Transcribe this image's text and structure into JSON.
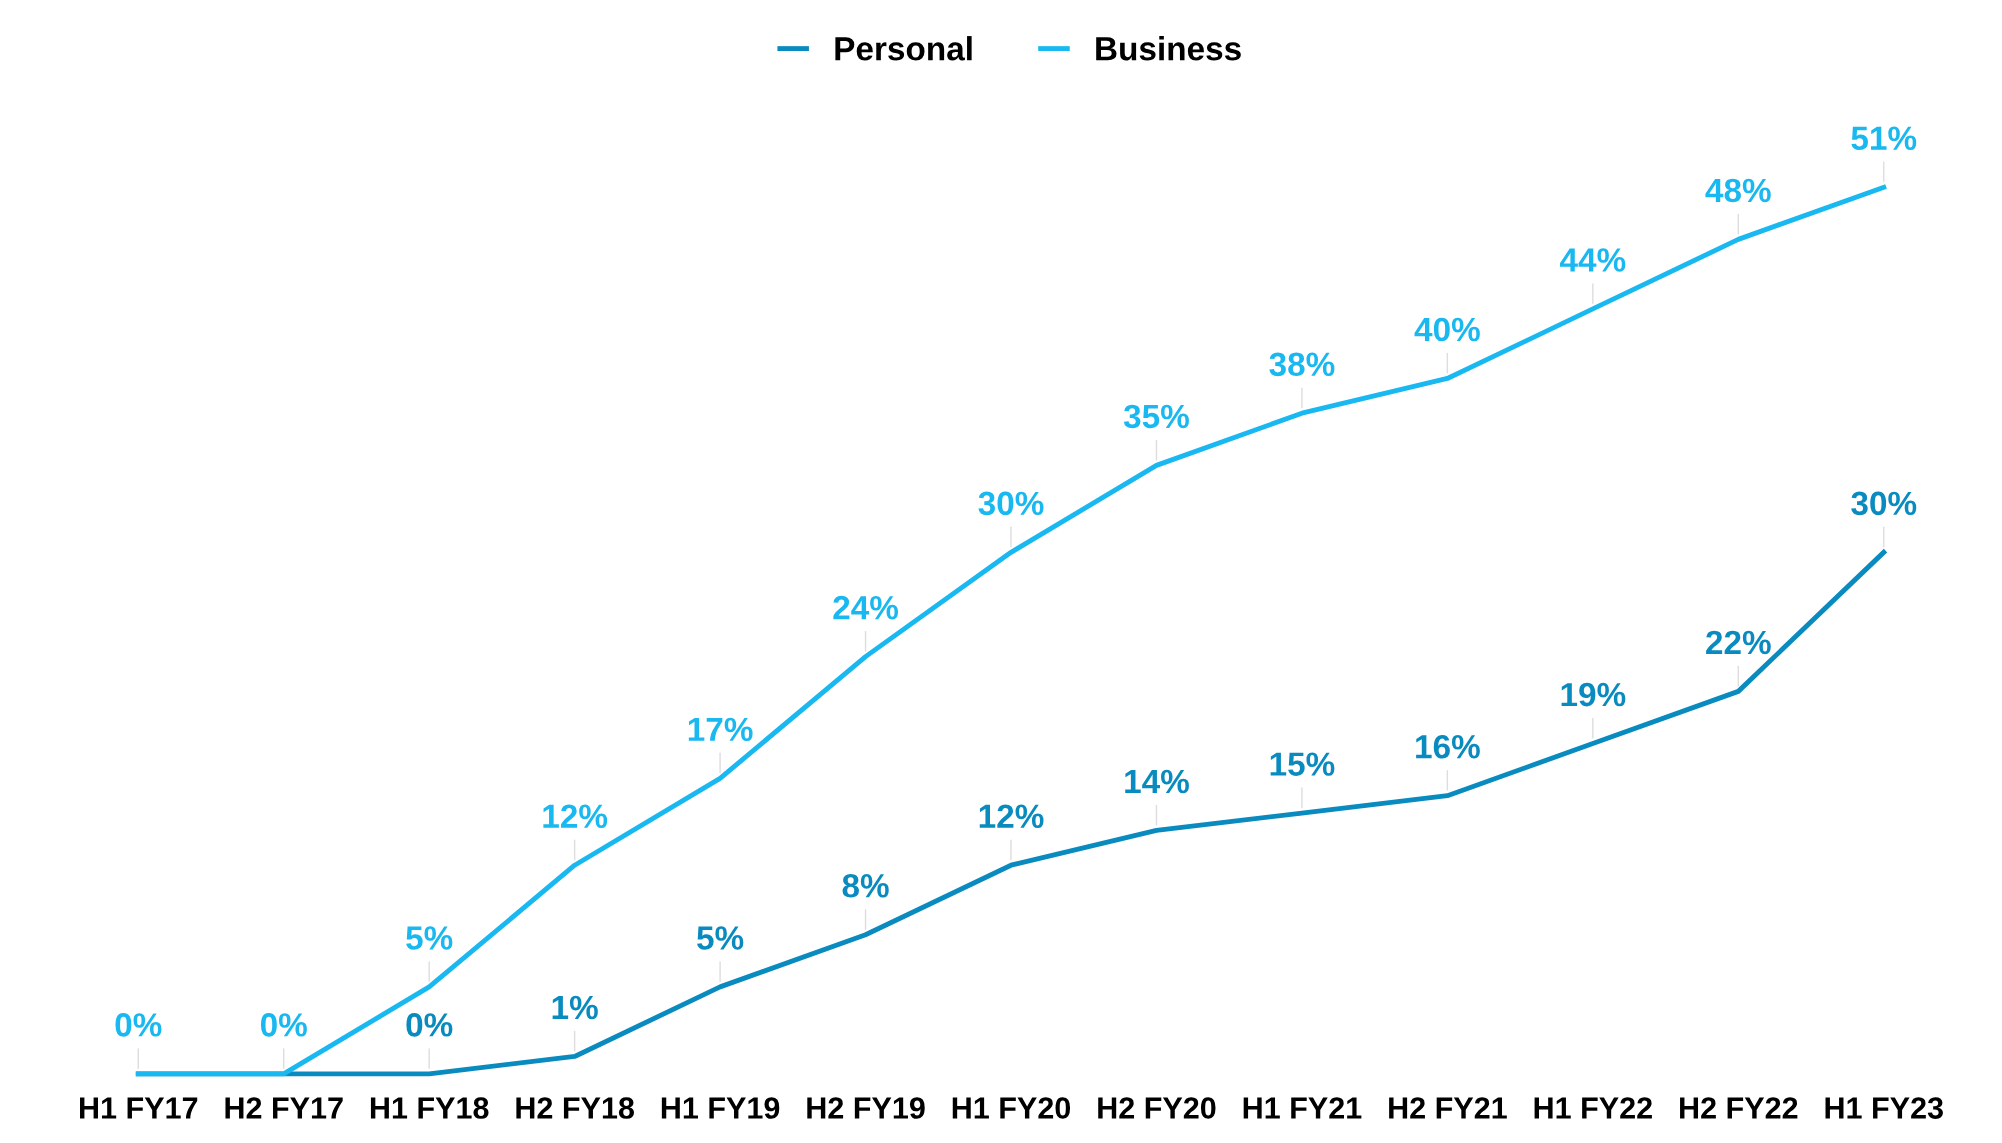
{
  "chart_data": {
    "type": "line",
    "categories": [
      "H1 FY17",
      "H2 FY17",
      "H1 FY18",
      "H2 FY18",
      "H1 FY19",
      "H2 FY19",
      "H1 FY20",
      "H2 FY20",
      "H1 FY21",
      "H2 FY21",
      "H1 FY22",
      "H2 FY22",
      "H1 FY23"
    ],
    "series": [
      {
        "name": "Personal",
        "color": "#0a8bbf",
        "values": [
          0,
          0,
          0,
          1,
          5,
          8,
          12,
          14,
          15,
          16,
          19,
          22,
          30
        ],
        "value_labels": [
          null,
          null,
          "0%",
          "1%",
          "5%",
          "8%",
          "12%",
          "14%",
          "15%",
          "16%",
          "19%",
          "22%",
          "30%"
        ]
      },
      {
        "name": "Business",
        "color": "#1ab8f0",
        "values": [
          0,
          0,
          5,
          12,
          17,
          24,
          30,
          35,
          38,
          40,
          44,
          48,
          51
        ],
        "value_labels": [
          "0%",
          "0%",
          "5%",
          "12%",
          "17%",
          "24%",
          "30%",
          "35%",
          "38%",
          "40%",
          "44%",
          "48%",
          "51%"
        ]
      }
    ],
    "legend": "top",
    "grid": false,
    "marker": "none",
    "line_style": "solid",
    "tick_labels": "x"
  }
}
